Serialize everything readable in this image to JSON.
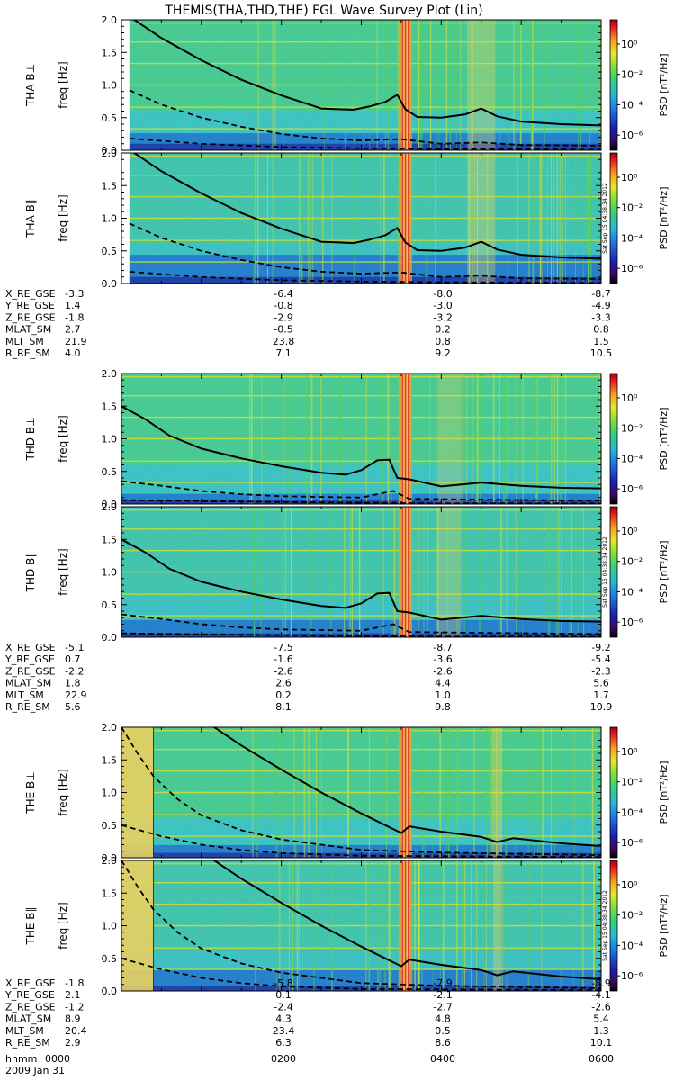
{
  "title": "THEMIS(THA,THD,THE) FGL Wave Survey Plot (Lin)",
  "colors": {
    "bg": "#ffffff",
    "spectrogram_cyan": "#3ec7c0",
    "spectrogram_green": "#57d25a",
    "spectrogram_blue": "#1a5fd0",
    "spectrogram_navy": "#1e2a9a",
    "harmonic_yellow": "#c8e040",
    "burst_red": "#e8262a",
    "burst_orange": "#f3a021",
    "ecg_yellow": "#e8d060",
    "line": "#000000"
  },
  "colorbar": {
    "label": "PSD [nT²/Hz]",
    "ticks": [
      {
        "label": "10⁰",
        "exp": 0
      },
      {
        "label": "10⁻²",
        "exp": -2
      },
      {
        "label": "10⁻⁴",
        "exp": -4
      },
      {
        "label": "10⁻⁶",
        "exp": -6
      }
    ],
    "range_exp": [
      -7,
      1.6
    ],
    "stamp": "Sat Sep 15 04:38:34 2012"
  },
  "chart_data": {
    "type": "heatmap",
    "ylabel": "freq [Hz]",
    "ylim": [
      0,
      2.0
    ],
    "yticks": [
      "0.0",
      "0.5",
      "1.0",
      "1.5",
      "2.0"
    ],
    "time_start_hours": 0,
    "time_end_hours": 6,
    "probes": [
      {
        "id": "THA",
        "panels": [
          {
            "label": "THA B⊥",
            "comp": "perp"
          },
          {
            "label": "THA B∥",
            "comp": "par"
          }
        ],
        "data_start": 0.1,
        "data_end": 6.0,
        "bursts": [
          {
            "t": 3.55,
            "w": 0.08,
            "strength": 1.0
          },
          {
            "t": 4.5,
            "w": 0.35,
            "strength": 0.5
          }
        ],
        "noise_band": 0.2,
        "fgyro": [
          {
            "t": 0.1,
            "f": 2.05
          },
          {
            "t": 0.5,
            "f": 1.72
          },
          {
            "t": 1.0,
            "f": 1.38
          },
          {
            "t": 1.5,
            "f": 1.08
          },
          {
            "t": 2.0,
            "f": 0.84
          },
          {
            "t": 2.5,
            "f": 0.64
          },
          {
            "t": 2.9,
            "f": 0.62
          },
          {
            "t": 3.1,
            "f": 0.67
          },
          {
            "t": 3.3,
            "f": 0.74
          },
          {
            "t": 3.45,
            "f": 0.85
          },
          {
            "t": 3.55,
            "f": 0.63
          },
          {
            "t": 3.7,
            "f": 0.51
          },
          {
            "t": 4.0,
            "f": 0.5
          },
          {
            "t": 4.3,
            "f": 0.55
          },
          {
            "t": 4.5,
            "f": 0.64
          },
          {
            "t": 4.7,
            "f": 0.52
          },
          {
            "t": 5.0,
            "f": 0.44
          },
          {
            "t": 5.5,
            "f": 0.4
          },
          {
            "t": 6.0,
            "f": 0.38
          }
        ],
        "dash_upper": [
          {
            "t": 0.1,
            "f": 0.92
          },
          {
            "t": 0.5,
            "f": 0.7
          },
          {
            "t": 1.0,
            "f": 0.5
          },
          {
            "t": 1.5,
            "f": 0.36
          },
          {
            "t": 2.0,
            "f": 0.25
          },
          {
            "t": 2.5,
            "f": 0.18
          },
          {
            "t": 3.0,
            "f": 0.15
          },
          {
            "t": 3.5,
            "f": 0.17
          },
          {
            "t": 4.0,
            "f": 0.1
          },
          {
            "t": 4.5,
            "f": 0.12
          },
          {
            "t": 5.0,
            "f": 0.08
          },
          {
            "t": 6.0,
            "f": 0.07
          }
        ],
        "dash_lower": [
          {
            "t": 0.1,
            "f": 0.18
          },
          {
            "t": 1.0,
            "f": 0.1
          },
          {
            "t": 2.0,
            "f": 0.05
          },
          {
            "t": 3.0,
            "f": 0.03
          },
          {
            "t": 4.0,
            "f": 0.02
          },
          {
            "t": 6.0,
            "f": 0.01
          }
        ],
        "ephemeris": [
          {
            "name": "X_RE_GSE",
            "values": [
              "-3.3",
              "-6.4",
              "-8.0",
              "-8.7"
            ]
          },
          {
            "name": "Y_RE_GSE",
            "values": [
              "1.4",
              "-0.8",
              "-3.0",
              "-4.9"
            ]
          },
          {
            "name": "Z_RE_GSE",
            "values": [
              "-1.8",
              "-2.9",
              "-3.2",
              "-3.3"
            ]
          },
          {
            "name": "MLAT_SM",
            "values": [
              "2.7",
              "-0.5",
              "0.2",
              "0.8"
            ]
          },
          {
            "name": "MLT_SM",
            "values": [
              "21.9",
              "23.8",
              "0.8",
              "1.5"
            ]
          },
          {
            "name": "R_RE_SM",
            "values": [
              "4.0",
              "7.1",
              "9.2",
              "10.5"
            ]
          }
        ]
      },
      {
        "id": "THD",
        "panels": [
          {
            "label": "THD B⊥",
            "comp": "perp"
          },
          {
            "label": "THD B∥",
            "comp": "par"
          }
        ],
        "data_start": 0.0,
        "data_end": 6.0,
        "bursts": [
          {
            "t": 3.55,
            "w": 0.08,
            "strength": 1.0
          },
          {
            "t": 4.1,
            "w": 0.3,
            "strength": 0.35
          }
        ],
        "noise_band": 0.12,
        "fgyro": [
          {
            "t": 0.0,
            "f": 1.5
          },
          {
            "t": 0.3,
            "f": 1.3
          },
          {
            "t": 0.6,
            "f": 1.05
          },
          {
            "t": 1.0,
            "f": 0.85
          },
          {
            "t": 1.5,
            "f": 0.7
          },
          {
            "t": 2.0,
            "f": 0.58
          },
          {
            "t": 2.5,
            "f": 0.48
          },
          {
            "t": 2.8,
            "f": 0.45
          },
          {
            "t": 3.0,
            "f": 0.52
          },
          {
            "t": 3.2,
            "f": 0.67
          },
          {
            "t": 3.35,
            "f": 0.68
          },
          {
            "t": 3.45,
            "f": 0.4
          },
          {
            "t": 3.6,
            "f": 0.38
          },
          {
            "t": 4.0,
            "f": 0.27
          },
          {
            "t": 4.5,
            "f": 0.33
          },
          {
            "t": 5.0,
            "f": 0.28
          },
          {
            "t": 5.5,
            "f": 0.25
          },
          {
            "t": 6.0,
            "f": 0.24
          }
        ],
        "dash_upper": [
          {
            "t": 0.0,
            "f": 0.35
          },
          {
            "t": 0.5,
            "f": 0.28
          },
          {
            "t": 1.0,
            "f": 0.2
          },
          {
            "t": 1.5,
            "f": 0.15
          },
          {
            "t": 2.0,
            "f": 0.12
          },
          {
            "t": 3.0,
            "f": 0.1
          },
          {
            "t": 3.4,
            "f": 0.2
          },
          {
            "t": 3.6,
            "f": 0.08
          },
          {
            "t": 6.0,
            "f": 0.05
          }
        ],
        "dash_lower": [
          {
            "t": 0.0,
            "f": 0.06
          },
          {
            "t": 2.0,
            "f": 0.03
          },
          {
            "t": 4.0,
            "f": 0.01
          },
          {
            "t": 6.0,
            "f": 0.01
          }
        ],
        "ephemeris": [
          {
            "name": "X_RE_GSE",
            "values": [
              "-5.1",
              "-7.5",
              "-8.7",
              "-9.2"
            ]
          },
          {
            "name": "Y_RE_GSE",
            "values": [
              "0.7",
              "-1.6",
              "-3.6",
              "-5.4"
            ]
          },
          {
            "name": "Z_RE_GSE",
            "values": [
              "-2.2",
              "-2.6",
              "-2.6",
              "-2.3"
            ]
          },
          {
            "name": "MLAT_SM",
            "values": [
              "1.8",
              "2.6",
              "4.4",
              "5.6"
            ]
          },
          {
            "name": "MLT_SM",
            "values": [
              "22.9",
              "0.2",
              "1.0",
              "1.7"
            ]
          },
          {
            "name": "R_RE_SM",
            "values": [
              "5.6",
              "8.1",
              "9.8",
              "10.9"
            ]
          }
        ]
      },
      {
        "id": "THE",
        "panels": [
          {
            "label": "THE B⊥",
            "comp": "perp"
          },
          {
            "label": "THE B∥",
            "comp": "par"
          }
        ],
        "data_start": 0.0,
        "data_end": 6.0,
        "early_yellow_end": 0.4,
        "bursts": [
          {
            "t": 3.55,
            "w": 0.08,
            "strength": 1.0
          },
          {
            "t": 4.7,
            "w": 0.1,
            "strength": 0.6
          }
        ],
        "noise_band": 0.15,
        "fgyro": [
          {
            "t": 1.1,
            "f": 2.05
          },
          {
            "t": 1.5,
            "f": 1.72
          },
          {
            "t": 2.0,
            "f": 1.35
          },
          {
            "t": 2.5,
            "f": 1.0
          },
          {
            "t": 3.0,
            "f": 0.68
          },
          {
            "t": 3.3,
            "f": 0.5
          },
          {
            "t": 3.5,
            "f": 0.38
          },
          {
            "t": 3.6,
            "f": 0.48
          },
          {
            "t": 4.0,
            "f": 0.4
          },
          {
            "t": 4.5,
            "f": 0.32
          },
          {
            "t": 4.7,
            "f": 0.24
          },
          {
            "t": 4.9,
            "f": 0.3
          },
          {
            "t": 5.5,
            "f": 0.22
          },
          {
            "t": 6.0,
            "f": 0.18
          }
        ],
        "dash_upper": [
          {
            "t": 0.0,
            "f": 2.0
          },
          {
            "t": 0.2,
            "f": 1.6
          },
          {
            "t": 0.4,
            "f": 1.25
          },
          {
            "t": 0.7,
            "f": 0.9
          },
          {
            "t": 1.0,
            "f": 0.65
          },
          {
            "t": 1.5,
            "f": 0.42
          },
          {
            "t": 2.0,
            "f": 0.28
          },
          {
            "t": 2.5,
            "f": 0.2
          },
          {
            "t": 3.0,
            "f": 0.12
          },
          {
            "t": 4.0,
            "f": 0.08
          },
          {
            "t": 6.0,
            "f": 0.04
          }
        ],
        "dash_lower": [
          {
            "t": 0.0,
            "f": 0.5
          },
          {
            "t": 0.5,
            "f": 0.33
          },
          {
            "t": 1.0,
            "f": 0.2
          },
          {
            "t": 1.5,
            "f": 0.12
          },
          {
            "t": 2.0,
            "f": 0.07
          },
          {
            "t": 3.0,
            "f": 0.03
          },
          {
            "t": 6.0,
            "f": 0.01
          }
        ],
        "ephemeris": [
          {
            "name": "X_RE_GSE",
            "values": [
              "-1.8",
              "-5.8",
              "-7.9",
              "-8.9"
            ]
          },
          {
            "name": "Y_RE_GSE",
            "values": [
              "2.1",
              "0.1",
              "-2.1",
              "-4.1"
            ]
          },
          {
            "name": "Z_RE_GSE",
            "values": [
              "-1.2",
              "-2.4",
              "-2.7",
              "-2.6"
            ]
          },
          {
            "name": "MLAT_SM",
            "values": [
              "8.9",
              "4.3",
              "4.8",
              "5.4"
            ]
          },
          {
            "name": "MLT_SM",
            "values": [
              "20.4",
              "23.4",
              "0.5",
              "1.3"
            ]
          },
          {
            "name": "R_RE_SM",
            "values": [
              "2.9",
              "6.3",
              "8.6",
              "10.1"
            ]
          }
        ]
      }
    ],
    "time_row": {
      "name": "hhmm",
      "values": [
        "0000",
        "0200",
        "0400",
        "0600"
      ]
    },
    "date": "2009 Jan 31"
  }
}
